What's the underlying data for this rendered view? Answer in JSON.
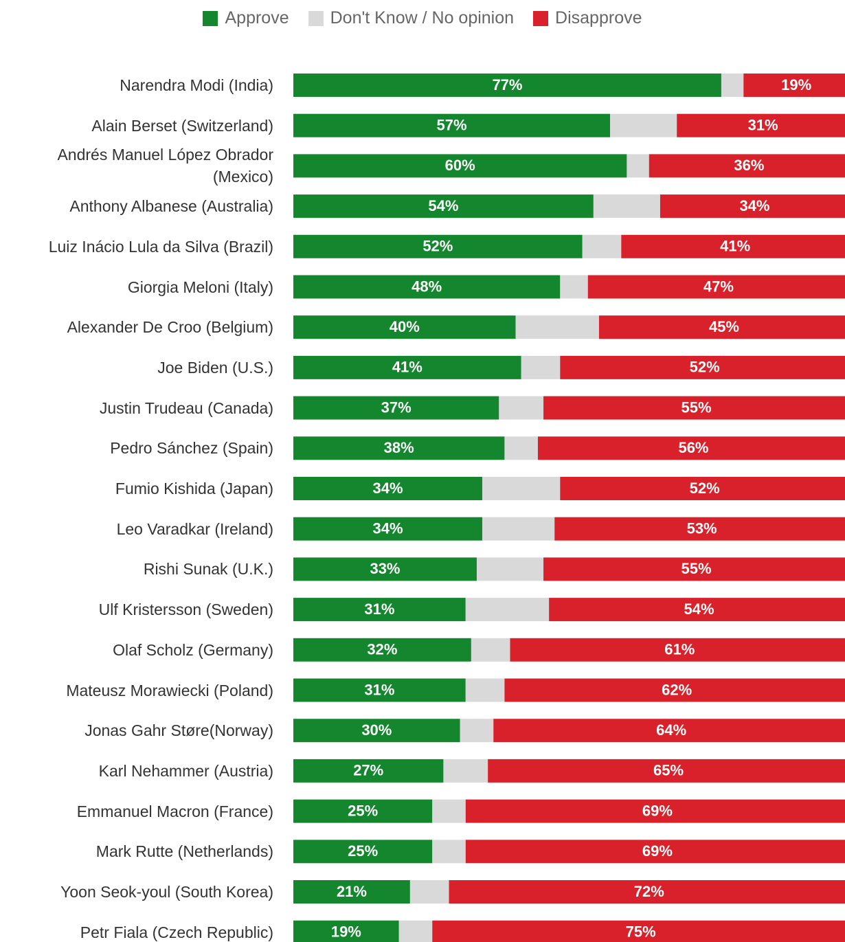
{
  "chart_data": {
    "type": "stacked-barh",
    "categories": [
      "Narendra Modi (India)",
      "Alain Berset (Switzerland)",
      "Andrés Manuel López Obrador (Mexico)",
      "Anthony Albanese (Australia)",
      "Luiz Inácio Lula da Silva (Brazil)",
      "Giorgia Meloni (Italy)",
      "Alexander De Croo (Belgium)",
      "Joe Biden (U.S.)",
      "Justin Trudeau (Canada)",
      "Pedro Sánchez (Spain)",
      "Fumio Kishida (Japan)",
      "Leo Varadkar (Ireland)",
      "Rishi Sunak (U.K.)",
      "Ulf Kristersson (Sweden)",
      "Olaf Scholz (Germany)",
      "Mateusz Morawiecki (Poland)",
      "Jonas Gahr Støre(Norway)",
      "Karl Nehammer (Austria)",
      "Emmanuel Macron (France)",
      "Mark Rutte (Netherlands)",
      "Yoon Seok-youl (South Korea)",
      "Petr Fiala (Czech Republic)"
    ],
    "series": [
      {
        "name": "Approve",
        "color": "#13862e",
        "values": [
          77,
          57,
          60,
          54,
          52,
          48,
          40,
          41,
          37,
          38,
          34,
          34,
          33,
          31,
          32,
          31,
          30,
          27,
          25,
          25,
          21,
          19
        ],
        "value_labels": [
          "77%",
          "57%",
          "60%",
          "54%",
          "52%",
          "48%",
          "40%",
          "41%",
          "37%",
          "38%",
          "34%",
          "34%",
          "33%",
          "31%",
          "32%",
          "31%",
          "30%",
          "27%",
          "25%",
          "25%",
          "21%",
          "19%"
        ]
      },
      {
        "name": "Don't Know / No opinion",
        "color": "#d9d9d9",
        "values": [
          4,
          12,
          4,
          12,
          7,
          5,
          15,
          7,
          8,
          6,
          14,
          13,
          12,
          15,
          7,
          7,
          6,
          8,
          6,
          6,
          7,
          6
        ]
      },
      {
        "name": "Disapprove",
        "color": "#d8212a",
        "values": [
          19,
          31,
          36,
          34,
          41,
          47,
          45,
          52,
          55,
          56,
          52,
          53,
          55,
          54,
          61,
          62,
          64,
          65,
          69,
          69,
          72,
          75
        ],
        "value_labels": [
          "19%",
          "31%",
          "36%",
          "34%",
          "41%",
          "47%",
          "45%",
          "52%",
          "55%",
          "56%",
          "52%",
          "53%",
          "55%",
          "54%",
          "61%",
          "62%",
          "64%",
          "65%",
          "69%",
          "69%",
          "72%",
          "75%"
        ]
      }
    ],
    "legend": "top"
  }
}
